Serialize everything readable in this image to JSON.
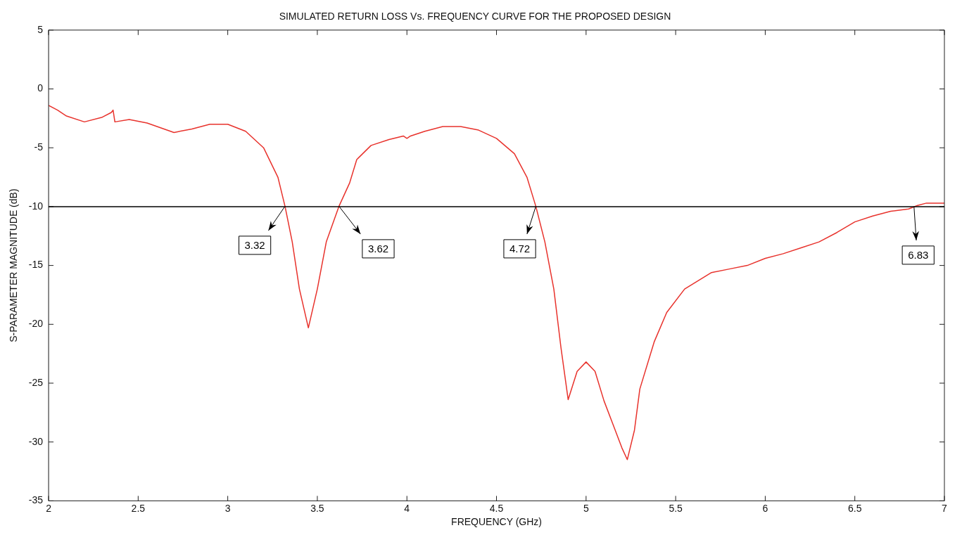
{
  "chart_data": {
    "type": "line",
    "title": "SIMULATED RETURN LOSS Vs. FREQUENCY CURVE FOR THE PROPOSED DESIGN",
    "xlabel": "FREQUENCY (GHz)",
    "ylabel": "S-PARAMETER MAGNITUDE (dB)",
    "x": [
      2.0,
      2.05,
      2.1,
      2.2,
      2.3,
      2.35,
      2.36,
      2.37,
      2.45,
      2.55,
      2.7,
      2.8,
      2.9,
      3.0,
      3.1,
      3.2,
      3.28,
      3.32,
      3.36,
      3.4,
      3.45,
      3.5,
      3.55,
      3.62,
      3.68,
      3.72,
      3.8,
      3.9,
      3.98,
      4.0,
      4.02,
      4.1,
      4.2,
      4.3,
      4.4,
      4.5,
      4.6,
      4.67,
      4.72,
      4.77,
      4.82,
      4.86,
      4.9,
      4.95,
      5.0,
      5.05,
      5.1,
      5.15,
      5.2,
      5.23,
      5.27,
      5.3,
      5.38,
      5.45,
      5.55,
      5.7,
      5.8,
      5.9,
      6.0,
      6.1,
      6.2,
      6.3,
      6.4,
      6.5,
      6.6,
      6.7,
      6.8,
      6.85,
      6.9,
      7.0
    ],
    "series": [
      {
        "color": "#e8322c",
        "values": [
          -1.4,
          -1.8,
          -2.3,
          -2.8,
          -2.4,
          -2.0,
          -1.8,
          -2.8,
          -2.6,
          -2.9,
          -3.7,
          -3.4,
          -3.0,
          -3.0,
          -3.6,
          -5.0,
          -7.5,
          -10,
          -13,
          -17,
          -20.3,
          -17,
          -13,
          -10,
          -8,
          -6,
          -4.8,
          -4.3,
          -4.0,
          -4.2,
          -4.0,
          -3.6,
          -3.2,
          -3.2,
          -3.5,
          -4.2,
          -5.5,
          -7.5,
          -10,
          -13,
          -17,
          -22,
          -26.4,
          -24,
          -23.2,
          -24,
          -26.5,
          -28.5,
          -30.5,
          -31.5,
          -29,
          -25.5,
          -21.5,
          -19,
          -17,
          -15.6,
          -15.3,
          -15.0,
          -14.4,
          -14.0,
          -13.5,
          -13.0,
          -12.2,
          -11.3,
          -10.8,
          -10.4,
          -10.2,
          -9.9,
          -9.7,
          -9.7
        ]
      }
    ],
    "xlim": [
      2,
      7
    ],
    "xticks": [
      2,
      2.5,
      3,
      3.5,
      4,
      4.5,
      5,
      5.5,
      6,
      6.5,
      7
    ],
    "ylim": [
      -35,
      5
    ],
    "yticks": [
      -35,
      -30,
      -25,
      -20,
      -15,
      -10,
      -5,
      0,
      5
    ],
    "ref_lines": [
      {
        "axis": "y",
        "value": -10,
        "color": "#000000"
      }
    ],
    "annotations": [
      {
        "text": "3.32",
        "x": 3.32,
        "y": -10
      },
      {
        "text": "3.62",
        "x": 3.62,
        "y": -10
      },
      {
        "text": "4.72",
        "x": 4.72,
        "y": -10
      },
      {
        "text": "6.83",
        "x": 6.83,
        "y": -10
      }
    ],
    "grid": false,
    "legend": false,
    "marker": "none",
    "line_style": "solid"
  }
}
